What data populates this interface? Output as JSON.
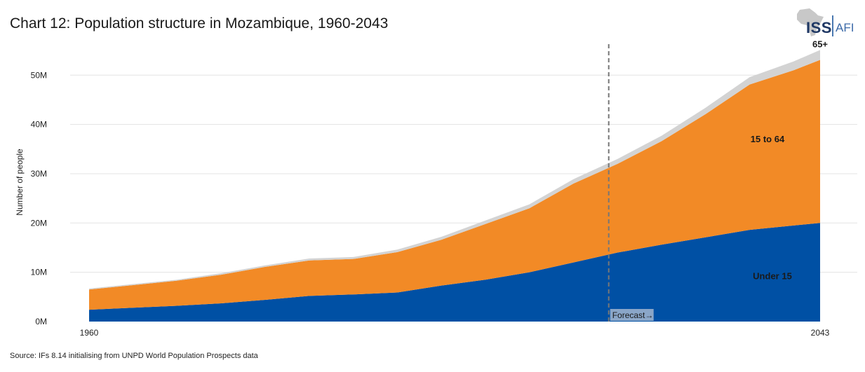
{
  "title": "Chart 12: Population structure in Mozambique, 1960-2043",
  "logo": {
    "left": "ISS",
    "right": "AFI"
  },
  "source": "Source: IFs 8.14 initialising from UNPD World Population Prospects data",
  "chart_data": {
    "type": "area",
    "stacked": true,
    "ylabel": "Number of people",
    "ylim": [
      0,
      58000000
    ],
    "y_ticks": [
      0,
      10000000,
      20000000,
      30000000,
      40000000,
      50000000
    ],
    "y_tick_labels": [
      "0M",
      "10M",
      "20M",
      "30M",
      "40M",
      "50M"
    ],
    "x_tick_labels": [
      "1960",
      "2043"
    ],
    "x": [
      1960,
      1965,
      1970,
      1975,
      1980,
      1985,
      1990,
      1995,
      2000,
      2005,
      2010,
      2015,
      2020,
      2025,
      2030,
      2035,
      2040,
      2043
    ],
    "series": [
      {
        "name": "Under 15",
        "color": "#0050a4",
        "values": [
          2.4,
          2.8,
          3.2,
          3.7,
          4.4,
          5.2,
          5.5,
          5.9,
          7.3,
          8.5,
          10.0,
          12.0,
          14.0,
          15.6,
          17.1,
          18.6,
          19.5,
          20.0
        ]
      },
      {
        "name": "15 to 64",
        "color": "#f28a26",
        "values": [
          4.1,
          4.6,
          5.1,
          5.8,
          6.7,
          7.2,
          7.2,
          8.2,
          9.3,
          11.3,
          13.0,
          16.0,
          18.0,
          21.0,
          25.0,
          29.5,
          31.5,
          33.1
        ]
      },
      {
        "name": "65+",
        "color": "#d3d3d3",
        "values": [
          0.2,
          0.2,
          0.2,
          0.3,
          0.3,
          0.4,
          0.4,
          0.5,
          0.6,
          0.7,
          0.8,
          0.9,
          1.0,
          1.1,
          1.3,
          1.5,
          1.8,
          2.0
        ]
      }
    ],
    "value_unit": "millions",
    "forecast_start": 2019,
    "forecast_label": "Forecast→",
    "grid": true
  }
}
